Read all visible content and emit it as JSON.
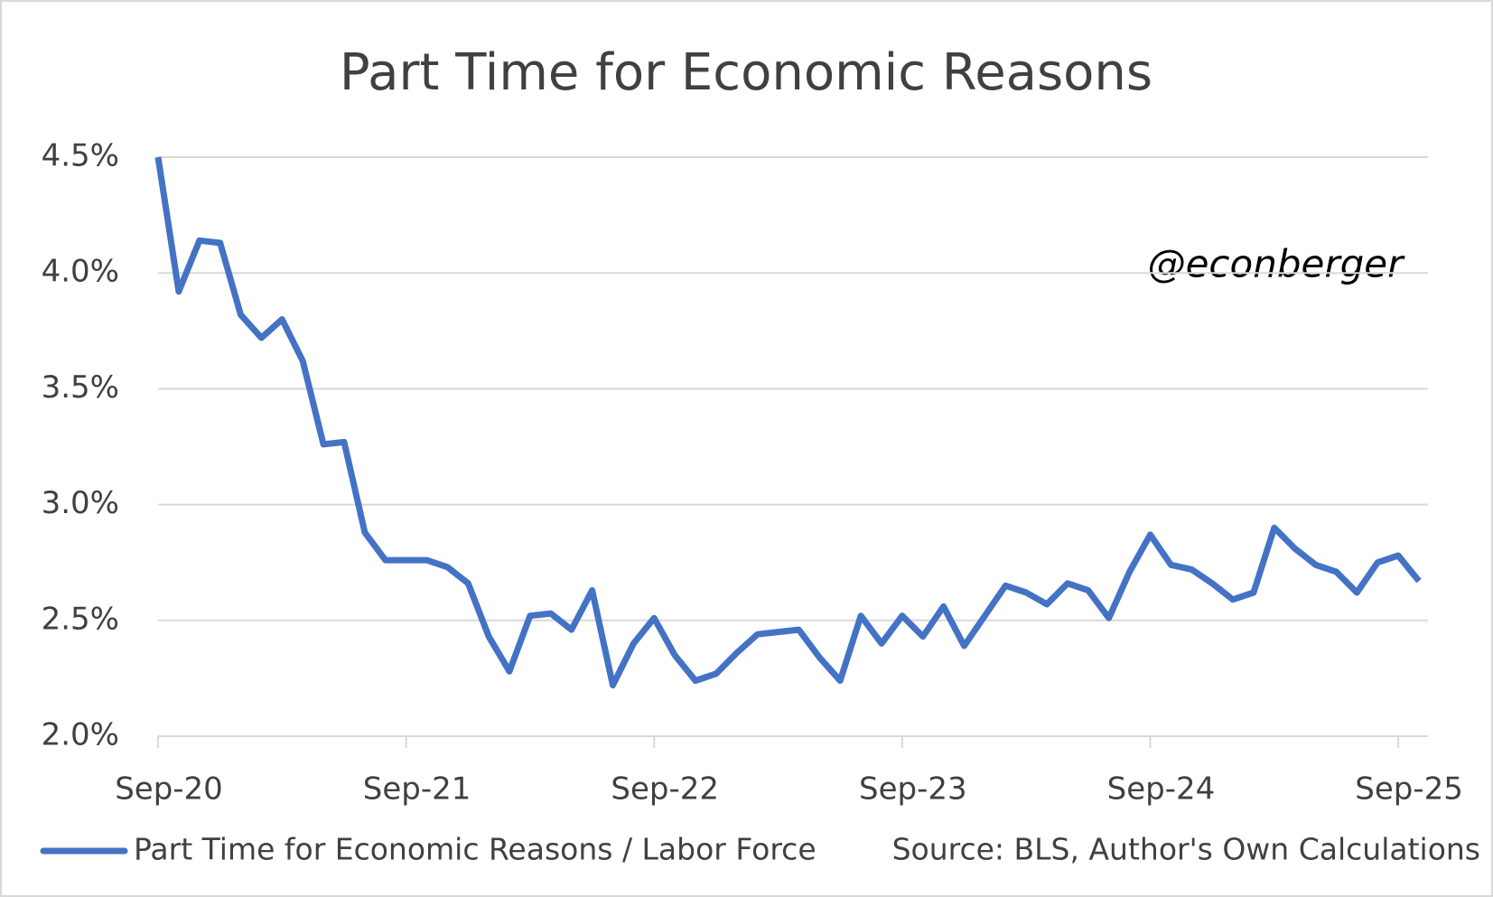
{
  "chart_data": {
    "type": "line",
    "title": "Part Time for Economic Reasons",
    "annotation": "@econberger",
    "source": "Source: BLS, Author's Own Calculations",
    "categories": [
      "Sep-20",
      null,
      null,
      null,
      null,
      null,
      null,
      null,
      null,
      null,
      null,
      null,
      "Sep-21",
      null,
      null,
      null,
      null,
      null,
      null,
      null,
      null,
      null,
      null,
      null,
      "Sep-22",
      null,
      null,
      null,
      null,
      null,
      null,
      null,
      null,
      null,
      null,
      null,
      "Sep-23",
      null,
      null,
      null,
      null,
      null,
      null,
      null,
      null,
      null,
      null,
      null,
      "Sep-24",
      null,
      null,
      null,
      null,
      null,
      null,
      null,
      null,
      null,
      null,
      null,
      "Sep-25",
      null
    ],
    "series": [
      {
        "name": "Part Time for Economic Reasons / Labor Force",
        "color": "#4472c4",
        "values": [
          4.5,
          3.92,
          4.14,
          4.13,
          3.82,
          3.72,
          3.8,
          3.62,
          3.26,
          3.27,
          2.88,
          2.76,
          2.76,
          2.76,
          2.73,
          2.66,
          2.43,
          2.28,
          2.52,
          2.53,
          2.46,
          2.63,
          2.22,
          2.4,
          2.51,
          2.35,
          2.24,
          2.27,
          2.36,
          2.44,
          2.45,
          2.46,
          2.34,
          2.24,
          2.52,
          2.4,
          2.52,
          2.43,
          2.56,
          2.39,
          2.52,
          2.65,
          2.62,
          2.57,
          2.66,
          2.63,
          2.51,
          2.71,
          2.87,
          2.74,
          2.72,
          2.66,
          2.59,
          2.62,
          2.9,
          2.81,
          2.74,
          2.71,
          2.62,
          2.75,
          2.78,
          2.67
        ]
      }
    ],
    "ylim": [
      2.0,
      4.5
    ],
    "yticks": [
      {
        "value": 2.0,
        "label": "2.0%"
      },
      {
        "value": 2.5,
        "label": "2.5%"
      },
      {
        "value": 3.0,
        "label": "3.0%"
      },
      {
        "value": 3.5,
        "label": "3.5%"
      },
      {
        "value": 4.0,
        "label": "4.0%"
      },
      {
        "value": 4.5,
        "label": "4.5%"
      }
    ],
    "grid": true
  }
}
